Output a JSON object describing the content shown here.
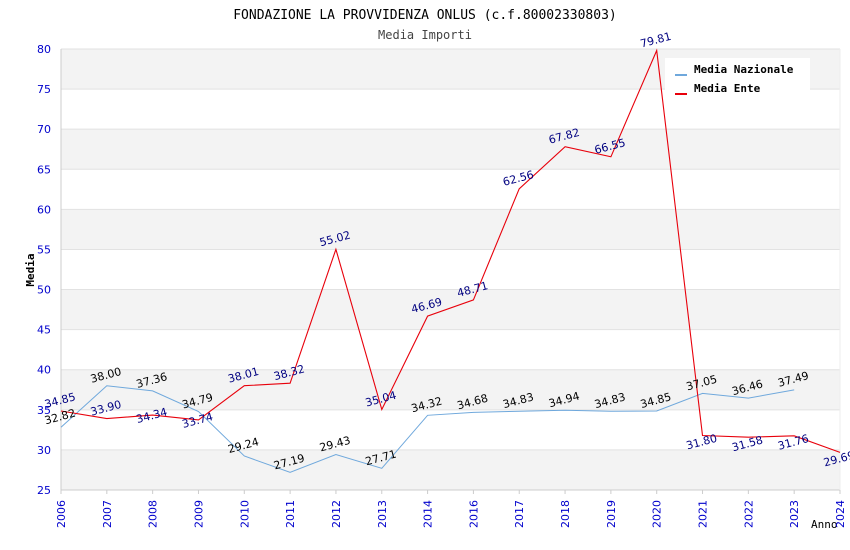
{
  "chart_data": {
    "type": "line",
    "title": "FONDAZIONE LA PROVVIDENZA ONLUS (c.f.80002330803)",
    "subtitle": "Media Importi",
    "xlabel": "Anno",
    "ylabel": "Media",
    "ylim": [
      25,
      80
    ],
    "yticks": [
      25,
      30,
      35,
      40,
      45,
      50,
      55,
      60,
      65,
      70,
      75,
      80
    ],
    "categories": [
      "2006",
      "2007",
      "2008",
      "2009",
      "2010",
      "2011",
      "2012",
      "2013",
      "2014",
      "2016",
      "2017",
      "2018",
      "2019",
      "2020",
      "2021",
      "2022",
      "2023",
      "2024"
    ],
    "legend_position": "top-right",
    "series": [
      {
        "name": "Media Nazionale",
        "color": "#6fa8dc",
        "label_color": "#000000",
        "values": [
          32.82,
          38.0,
          37.36,
          34.79,
          29.24,
          27.19,
          29.43,
          27.71,
          34.32,
          34.68,
          34.83,
          34.94,
          34.83,
          34.85,
          37.05,
          36.46,
          37.49,
          null
        ],
        "labels": [
          "32.82",
          "38.00",
          "37.36",
          "34.79",
          "29.24",
          "27.19",
          "29.43",
          "27.71",
          "34.32",
          "34.68",
          "34.83",
          "34.94",
          "34.83",
          "34.85",
          "37.05",
          "36.46",
          "37.49",
          null
        ]
      },
      {
        "name": "Media Ente",
        "color": "#e8000b",
        "label_color": "#000080",
        "values": [
          34.85,
          33.9,
          34.34,
          33.74,
          38.01,
          38.32,
          55.02,
          35.04,
          46.69,
          48.71,
          62.56,
          67.82,
          66.55,
          79.81,
          31.8,
          31.58,
          31.76,
          29.69
        ],
        "labels": [
          "34.85",
          "33.90",
          "34.34",
          "33.74",
          "38.01",
          "38.32",
          "55.02",
          "35.04",
          "46.69",
          "48.71",
          "62.56",
          "67.82",
          "66.55",
          "79.81",
          "31.80",
          "31.58",
          "31.76",
          "29.69"
        ]
      }
    ]
  }
}
